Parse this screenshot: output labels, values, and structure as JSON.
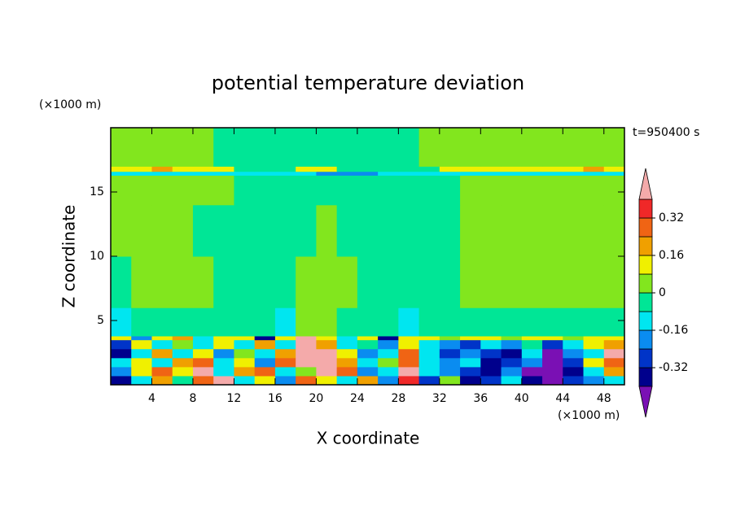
{
  "chart_data": {
    "type": "contour",
    "title": "potential temperature deviation",
    "x_label": "X coordinate",
    "y_label": "Z coordinate",
    "x_unit": "(×1000 m)",
    "y_unit": "(×1000 m)",
    "time_label": "t=950400 s",
    "xlim": [
      0,
      50
    ],
    "ylim": [
      0,
      20
    ],
    "xticks": [
      4,
      8,
      12,
      16,
      20,
      24,
      28,
      32,
      36,
      40,
      44,
      48
    ],
    "yticks": [
      5,
      10,
      15
    ],
    "levels": [
      -0.4,
      -0.32,
      -0.24,
      -0.16,
      -0.08,
      0,
      0.08,
      0.16,
      0.24,
      0.32,
      0.4
    ],
    "colors": [
      "#7a10b4",
      "#00008c",
      "#0034c8",
      "#0a8cf0",
      "#00e6f0",
      "#00e696",
      "#82e61e",
      "#f0f000",
      "#f0a000",
      "#f06414",
      "#f02828",
      "#f4aaaa"
    ],
    "colorbar_ticks": [
      -0.32,
      -0.16,
      0,
      0.16,
      0.32
    ],
    "x_edges": [
      0,
      2,
      4,
      6,
      8,
      10,
      12,
      14,
      16,
      18,
      20,
      22,
      24,
      26,
      28,
      30,
      32,
      34,
      36,
      38,
      40,
      42,
      44,
      46,
      48,
      50
    ],
    "z_edges": [
      0,
      0.7,
      1.4,
      2.1,
      2.8,
      3.5,
      3.8,
      6,
      10,
      14,
      16.3,
      16.6,
      17,
      20
    ],
    "values": [
      [
        -0.36,
        -0.1,
        0.2,
        -0.05,
        0.3,
        0.45,
        -0.1,
        0.1,
        -0.2,
        0.3,
        0.1,
        -0.1,
        0.2,
        -0.2,
        0.35,
        -0.3,
        0.0,
        -0.35,
        -0.3,
        -0.1,
        -0.36,
        -0.45,
        -0.3,
        -0.2,
        -0.1
      ],
      [
        -0.2,
        0.1,
        0.3,
        0.1,
        0.45,
        -0.1,
        0.2,
        0.3,
        -0.1,
        0.0,
        0.45,
        0.3,
        -0.2,
        -0.1,
        0.4,
        -0.1,
        -0.2,
        -0.3,
        -0.36,
        -0.2,
        -0.45,
        -0.45,
        -0.36,
        -0.1,
        0.2
      ],
      [
        -0.1,
        0.15,
        -0.1,
        0.2,
        0.3,
        -0.15,
        0.1,
        -0.2,
        0.3,
        0.45,
        0.45,
        0.2,
        -0.1,
        0.0,
        0.3,
        -0.1,
        -0.2,
        -0.1,
        -0.36,
        -0.3,
        -0.2,
        -0.45,
        -0.3,
        0.1,
        0.3
      ],
      [
        -0.36,
        -0.1,
        0.2,
        -0.1,
        0.1,
        -0.2,
        0.0,
        -0.1,
        0.2,
        0.45,
        0.45,
        0.1,
        -0.2,
        -0.1,
        0.25,
        -0.15,
        -0.3,
        -0.2,
        -0.3,
        -0.36,
        -0.1,
        -0.45,
        -0.2,
        -0.1,
        0.45
      ],
      [
        -0.3,
        0.1,
        -0.1,
        0.05,
        -0.1,
        0.1,
        -0.1,
        0.2,
        -0.1,
        0.45,
        0.2,
        -0.1,
        -0.05,
        -0.2,
        0.1,
        -0.1,
        -0.2,
        -0.3,
        -0.1,
        -0.2,
        -0.05,
        -0.3,
        -0.1,
        0.1,
        0.2
      ],
      [
        0.1,
        -0.2,
        0.1,
        0.2,
        -0.1,
        0.1,
        0.1,
        -0.36,
        0.1,
        0.45,
        0.1,
        -0.1,
        0.1,
        -0.36,
        0.1,
        0.1,
        0.05,
        0.1,
        0.1,
        0.05,
        0.1,
        0.1,
        0.05,
        0.1,
        0.1
      ],
      [
        -0.12,
        -0.04,
        -0.04,
        -0.04,
        -0.04,
        -0.04,
        -0.04,
        -0.04,
        -0.12,
        0.04,
        0.04,
        -0.04,
        -0.04,
        -0.04,
        -0.12,
        -0.04,
        -0.04,
        -0.04,
        -0.04,
        -0.04,
        -0.04,
        -0.04,
        -0.04,
        -0.04,
        -0.04
      ],
      [
        -0.04,
        0.04,
        0.04,
        0.04,
        0.04,
        -0.04,
        -0.04,
        -0.04,
        -0.04,
        0.04,
        0.04,
        0.04,
        -0.04,
        -0.04,
        -0.04,
        -0.04,
        -0.04,
        0.04,
        0.04,
        0.04,
        0.04,
        0.04,
        0.04,
        0.04,
        0.04
      ],
      [
        0.04,
        0.04,
        0.04,
        0.04,
        -0.04,
        -0.04,
        -0.04,
        -0.04,
        -0.04,
        -0.04,
        0.04,
        -0.04,
        -0.04,
        -0.04,
        -0.04,
        -0.04,
        -0.04,
        0.04,
        0.04,
        0.04,
        0.04,
        0.04,
        0.04,
        0.04,
        0.04
      ],
      [
        0.04,
        0.04,
        0.04,
        0.04,
        0.04,
        0.04,
        -0.04,
        -0.04,
        -0.04,
        -0.04,
        -0.04,
        -0.04,
        -0.04,
        -0.04,
        -0.04,
        -0.04,
        -0.04,
        0.04,
        0.04,
        0.04,
        0.04,
        0.04,
        0.04,
        0.04,
        0.04
      ],
      [
        -0.1,
        -0.1,
        -0.1,
        -0.1,
        -0.1,
        -0.1,
        -0.1,
        -0.1,
        -0.1,
        -0.1,
        -0.2,
        -0.2,
        -0.2,
        -0.1,
        -0.1,
        -0.1,
        -0.1,
        -0.1,
        -0.1,
        -0.1,
        -0.1,
        -0.1,
        -0.1,
        -0.1,
        -0.1
      ],
      [
        0.1,
        0.1,
        0.2,
        0.1,
        0.1,
        0.1,
        -0.04,
        -0.04,
        -0.04,
        0.1,
        0.1,
        -0.04,
        -0.04,
        -0.04,
        -0.04,
        -0.04,
        0.1,
        0.1,
        0.1,
        0.1,
        0.1,
        0.1,
        0.1,
        0.2,
        0.1
      ],
      [
        0.04,
        0.04,
        0.04,
        0.04,
        0.04,
        -0.04,
        -0.04,
        -0.04,
        -0.04,
        -0.04,
        -0.04,
        -0.04,
        -0.04,
        -0.04,
        -0.04,
        0.04,
        0.04,
        0.04,
        0.04,
        0.04,
        0.04,
        0.04,
        0.04,
        0.04,
        0.04
      ]
    ]
  }
}
